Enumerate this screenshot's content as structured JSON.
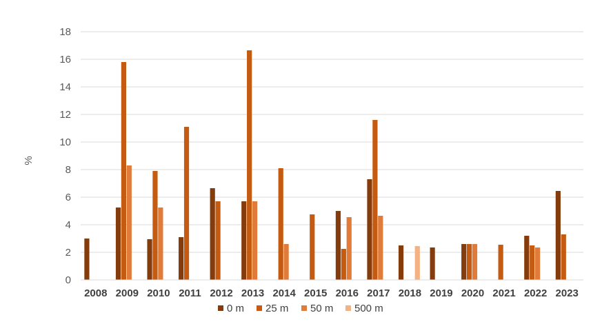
{
  "chart_data": {
    "type": "bar",
    "ylabel": "%",
    "ylim": [
      0,
      18
    ],
    "yticks": [
      0,
      2,
      4,
      6,
      8,
      10,
      12,
      14,
      16,
      18
    ],
    "grid": true,
    "legend_position": "bottom",
    "categories": [
      "2008",
      "2009",
      "2010",
      "2011",
      "2012",
      "2013",
      "2014",
      "2015",
      "2016",
      "2017",
      "2018",
      "2019",
      "2020",
      "2021",
      "2022",
      "2023"
    ],
    "series": [
      {
        "name": "0 m",
        "color": "#843C0C",
        "values": [
          3.0,
          5.25,
          2.95,
          3.1,
          6.65,
          5.7,
          null,
          null,
          5.0,
          7.3,
          2.5,
          2.35,
          2.6,
          null,
          3.2,
          6.45
        ]
      },
      {
        "name": "25 m",
        "color": "#C55A11",
        "values": [
          null,
          15.8,
          7.9,
          11.1,
          5.7,
          16.65,
          8.1,
          4.75,
          2.25,
          11.6,
          null,
          null,
          2.6,
          2.55,
          2.5,
          3.3
        ]
      },
      {
        "name": "50 m",
        "color": "#E07B39",
        "values": [
          null,
          8.3,
          5.25,
          null,
          null,
          5.7,
          2.6,
          null,
          4.55,
          4.65,
          null,
          null,
          2.6,
          null,
          2.35,
          null
        ]
      },
      {
        "name": "500 m",
        "color": "#F4B183",
        "values": [
          null,
          null,
          null,
          null,
          null,
          null,
          null,
          null,
          null,
          null,
          2.45,
          null,
          null,
          null,
          null,
          null
        ]
      }
    ]
  }
}
